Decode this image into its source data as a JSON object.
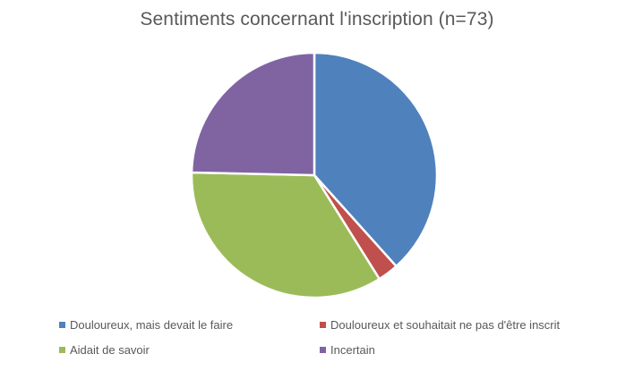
{
  "chart_data": {
    "type": "pie",
    "title": "Sentiments concernant l'inscription (n=73)",
    "categories": [
      "Douloureux, mais devait le faire",
      "Douloureux et souhaitait ne pas d'être inscrit",
      "Aidait de savoir",
      "Incertain"
    ],
    "values": [
      28,
      2,
      25,
      18
    ],
    "colors": [
      "#4F81BD",
      "#C0504D",
      "#9BBB59",
      "#8064A2"
    ],
    "start_angle": "12 o'clock",
    "direction": "clockwise",
    "legend_position": "bottom"
  }
}
